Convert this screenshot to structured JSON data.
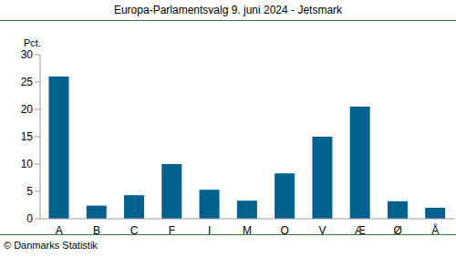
{
  "chart_data": {
    "type": "bar",
    "title": "Europa-Parlamentsvalg 9. juni 2024 - Jetsmark",
    "ylabel": "Pct.",
    "source": "© Danmarks Statistik",
    "categories": [
      "A",
      "B",
      "C",
      "F",
      "I",
      "M",
      "O",
      "V",
      "Æ",
      "Ø",
      "Å"
    ],
    "values": [
      26.0,
      2.4,
      4.3,
      10.0,
      5.3,
      3.3,
      8.3,
      15.0,
      20.5,
      3.2,
      2.0
    ],
    "color": "#00608e",
    "ylim": [
      0,
      30
    ],
    "yticks": [
      0,
      5,
      10,
      15,
      20,
      25,
      30
    ],
    "grid": false
  }
}
